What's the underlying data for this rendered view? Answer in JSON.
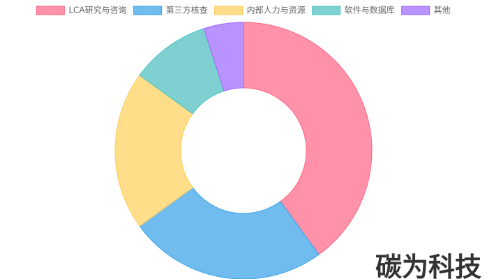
{
  "chart_data": {
    "type": "doughnut",
    "categories": [
      "LCA研究与咨询",
      "第三方核查",
      "内部人力与资源",
      "软件与数据库",
      "其他"
    ],
    "values": [
      40,
      25,
      20,
      10,
      5
    ],
    "colors": [
      "#ff91a9",
      "#71bcef",
      "#ffdd89",
      "#7fd1d1",
      "#b993ff"
    ],
    "border_colors": [
      "#ff6384",
      "#36a2eb",
      "#ffcd56",
      "#4bc0c0",
      "#9966ff"
    ],
    "legend": "top"
  },
  "watermark": "碳为科技"
}
